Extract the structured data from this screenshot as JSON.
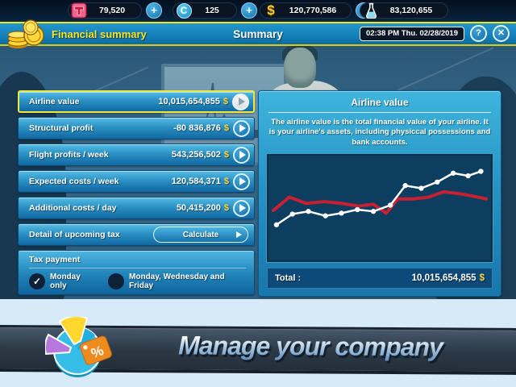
{
  "top_bar": {
    "plus_label": "+",
    "currencies": [
      {
        "icon": "travel-card-icon",
        "value": "79,520",
        "has_plus": true
      },
      {
        "icon": "c-coin-icon",
        "coin_letter": "C",
        "value": "125",
        "has_plus": true
      },
      {
        "icon": "dollar-icon",
        "dollar_glyph": "$",
        "value": "120,770,586",
        "has_plus": true
      },
      {
        "icon": "flask-icon",
        "value": "83,120,655",
        "has_plus": false
      }
    ]
  },
  "header": {
    "icon": "coins-icon",
    "title": "Financial summary",
    "center_title": "Summary",
    "datetime": "02:38 PM Thu. 02/28/2019",
    "help_label": "?",
    "close_label": "✕"
  },
  "left_panel": {
    "rows": [
      {
        "label": "Airline value",
        "value": "10,015,654,855",
        "currency": "$",
        "selected": true
      },
      {
        "label": "Structural profit",
        "value": "-80 836,876",
        "currency": "$",
        "selected": false
      },
      {
        "label": "Flight profits / week",
        "value": "543,256,502",
        "currency": "$",
        "selected": false
      },
      {
        "label": "Expected costs / week",
        "value": "120,584,371",
        "currency": "$",
        "selected": false
      },
      {
        "label": "Additional costs / day",
        "value": "50,415,200",
        "currency": "$",
        "selected": false
      },
      {
        "label": "Detail of upcoming tax",
        "button": "Calculate"
      }
    ],
    "tax_payment": {
      "title": "Tax payment",
      "options": [
        {
          "label": "Monday only",
          "checked": true
        },
        {
          "label": "Monday, Wednesday and Friday",
          "checked": false
        }
      ]
    }
  },
  "right_panel": {
    "title": "Airline value",
    "description": "The airline value is the total financial value of your airline. It is your airline's assets, including physiccal possessions and bank accounts.",
    "total_label": "Total :",
    "total_value": "10,015,654,855",
    "currency": "$"
  },
  "chart_data": {
    "type": "line",
    "title": "",
    "xlabel": "",
    "ylabel": "",
    "grid": false,
    "legend": "none",
    "axes_visible": false,
    "background": "#0d3e5f",
    "ylim": [
      0,
      100
    ],
    "series": [
      {
        "name": "airline-value-white",
        "color": "#ffffff",
        "width": 2.5,
        "markers": true,
        "x": [
          0.015,
          0.09,
          0.165,
          0.245,
          0.32,
          0.395,
          0.47,
          0.55,
          0.62,
          0.695,
          0.77,
          0.845,
          0.915,
          0.975
        ],
        "values": [
          33,
          45,
          48,
          43,
          46,
          50,
          48,
          55,
          77,
          74,
          81,
          91,
          88,
          93
        ]
      },
      {
        "name": "comparison-red",
        "color": "#c82030",
        "width": 4,
        "markers": false,
        "x": [
          0,
          0.075,
          0.155,
          0.24,
          0.32,
          0.4,
          0.47,
          0.53,
          0.585,
          0.655,
          0.73,
          0.8,
          0.87,
          0.94,
          1.0
        ],
        "values": [
          49,
          64,
          57,
          59,
          57,
          54,
          56,
          46,
          62,
          62,
          64,
          70,
          68,
          65,
          62
        ]
      }
    ]
  },
  "banner": {
    "icon": "pie-chart-percent-icon",
    "text": "Manage your company"
  },
  "colors": {
    "accent_yellow": "#ffe41e",
    "money_yellow": "#ffd43a",
    "row_blue_top": "#55bde6",
    "row_blue_bottom": "#1168a2",
    "panel_border": "#0d4a76",
    "selected_border": "#efe73e",
    "chart_bg": "#0d3e5f",
    "chart_line_red": "#c82030",
    "banner_bg": "#2b3844"
  }
}
